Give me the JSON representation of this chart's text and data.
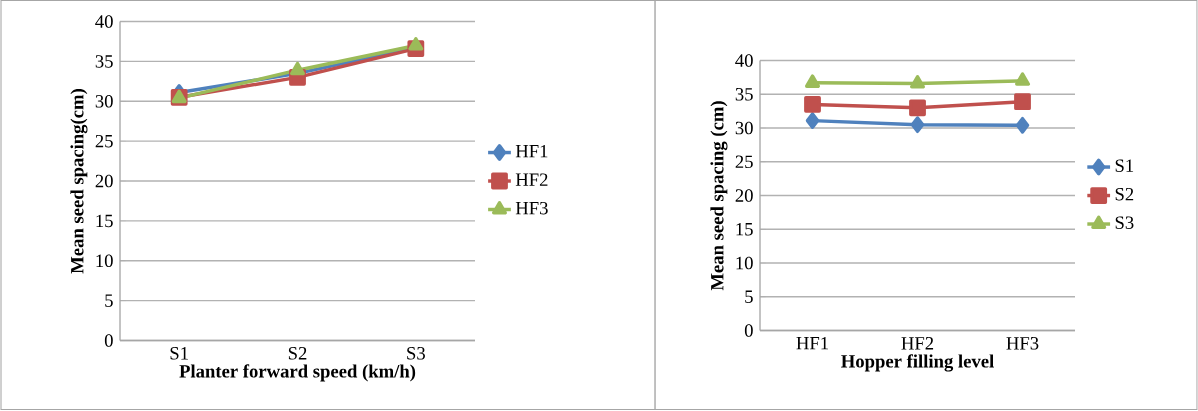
{
  "chart_data": [
    {
      "type": "line",
      "xlabel": "Planter forward speed (km/h)",
      "ylabel": "Mean seed spacing(cm)",
      "categories": [
        "S1",
        "S2",
        "S3"
      ],
      "ylim": [
        0,
        40
      ],
      "yticks": [
        0,
        5,
        10,
        15,
        20,
        25,
        30,
        35,
        40
      ],
      "grid": "y",
      "legend": "right",
      "series": [
        {
          "name": "HF1",
          "color": "#4f81bd",
          "marker": "diamond",
          "values": [
            31.1,
            33.5,
            36.7
          ]
        },
        {
          "name": "HF2",
          "color": "#c0504d",
          "marker": "square",
          "values": [
            30.5,
            33.0,
            36.6
          ]
        },
        {
          "name": "HF3",
          "color": "#9bbb59",
          "marker": "triangle",
          "values": [
            30.4,
            33.9,
            37.0
          ]
        }
      ]
    },
    {
      "type": "line",
      "xlabel": "Hopper filling level",
      "ylabel": "Mean seed spacing (cm)",
      "categories": [
        "HF1",
        "HF2",
        "HF3"
      ],
      "ylim": [
        0,
        40
      ],
      "yticks": [
        0,
        5,
        10,
        15,
        20,
        25,
        30,
        35,
        40
      ],
      "grid": "y",
      "legend": "right",
      "series": [
        {
          "name": "S1",
          "color": "#4f81bd",
          "marker": "diamond",
          "values": [
            31.1,
            30.5,
            30.4
          ]
        },
        {
          "name": "S2",
          "color": "#c0504d",
          "marker": "square",
          "values": [
            33.5,
            33.0,
            33.9
          ]
        },
        {
          "name": "S3",
          "color": "#9bbb59",
          "marker": "triangle",
          "values": [
            36.7,
            36.6,
            37.0
          ]
        }
      ]
    }
  ]
}
